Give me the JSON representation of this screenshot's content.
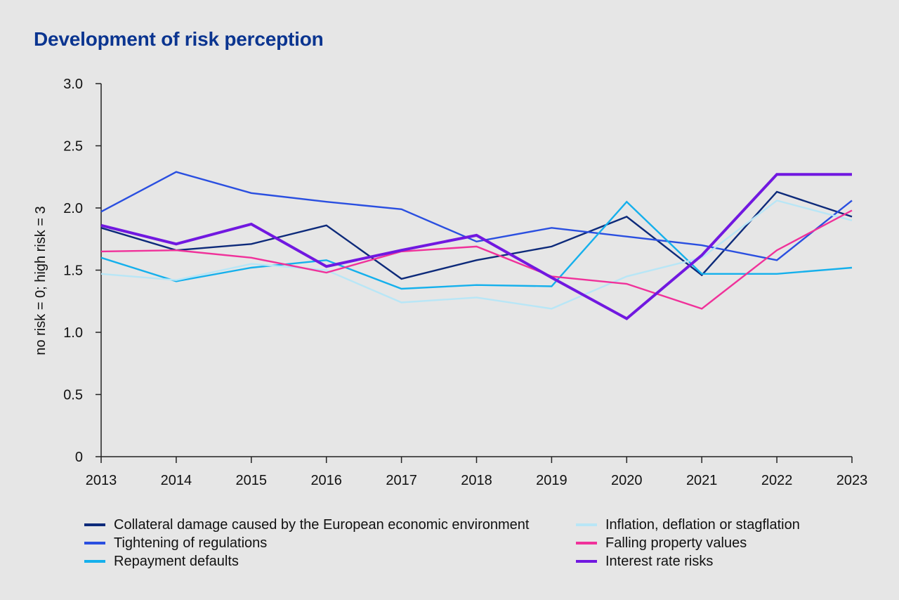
{
  "title": "Development of risk perception",
  "chart_data": {
    "type": "line",
    "title": "Development of risk perception",
    "xlabel": "",
    "ylabel": "no risk = 0; high risk = 3",
    "x": [
      "2013",
      "2014",
      "2015",
      "2016",
      "2017",
      "2018",
      "2019",
      "2020",
      "2021",
      "2022",
      "2023"
    ],
    "ylim": [
      0,
      3
    ],
    "yticks": [
      "0",
      "0.5",
      "1.0",
      "1.5",
      "2.0",
      "2.5",
      "3.0"
    ],
    "grid": false,
    "legend_position": "bottom",
    "series": [
      {
        "name": "Collateral damage caused by the European economic environment",
        "color": "#0d2a7a",
        "values": [
          1.84,
          1.66,
          1.71,
          1.86,
          1.43,
          1.58,
          1.69,
          1.93,
          1.46,
          2.13,
          1.93
        ]
      },
      {
        "name": "Tightening of regulations",
        "color": "#2a4fe0",
        "values": [
          1.97,
          2.29,
          2.12,
          2.05,
          1.99,
          1.73,
          1.84,
          1.77,
          1.7,
          1.58,
          2.06
        ]
      },
      {
        "name": "Repayment defaults",
        "color": "#15b0ec",
        "values": [
          1.6,
          1.41,
          1.52,
          1.58,
          1.35,
          1.38,
          1.37,
          2.05,
          1.47,
          1.47,
          1.52
        ]
      },
      {
        "name": "Inflation, deflation or stagflation",
        "color": "#b8e6f6",
        "values": [
          1.47,
          1.42,
          1.55,
          1.5,
          1.24,
          1.28,
          1.19,
          1.45,
          1.6,
          2.06,
          1.9
        ]
      },
      {
        "name": "Falling property values",
        "color": "#f0319a",
        "values": [
          1.65,
          1.66,
          1.6,
          1.48,
          1.65,
          1.69,
          1.45,
          1.39,
          1.19,
          1.66,
          1.98
        ]
      },
      {
        "name": "Interest rate risks",
        "color": "#7118e0",
        "values": [
          1.86,
          1.71,
          1.87,
          1.53,
          1.66,
          1.78,
          1.44,
          1.11,
          1.62,
          2.27,
          2.27
        ]
      }
    ]
  }
}
